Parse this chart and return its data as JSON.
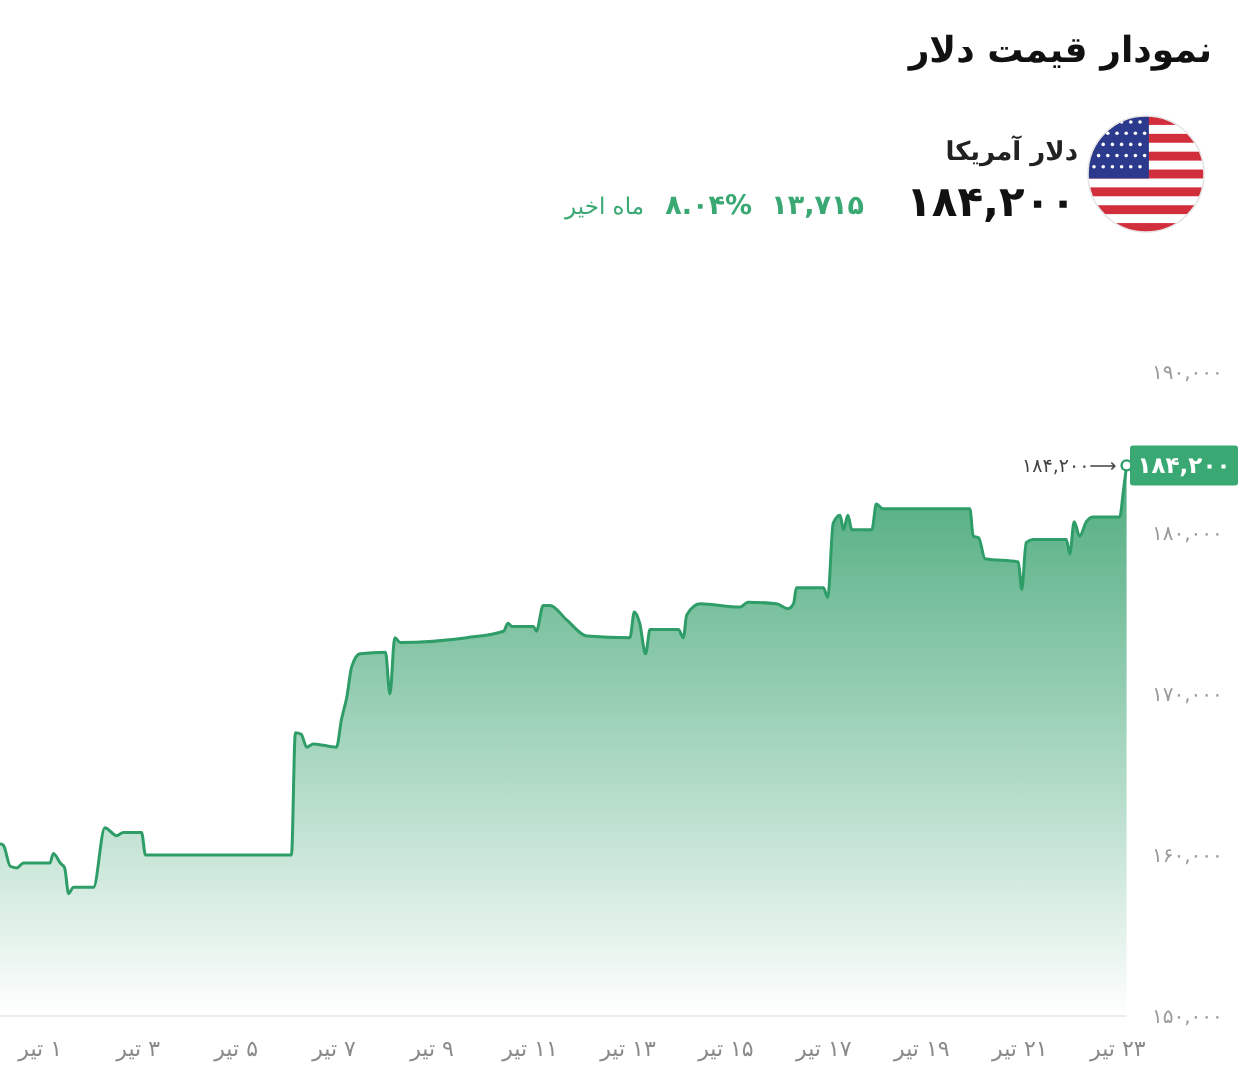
{
  "chart_data": {
    "type": "area",
    "title": "نمودار قیمت دلار",
    "subtitle": "دلار آمریکا",
    "annotations": [
      "۱۸۴,۲۰۰",
      "۱۳,۷۱۵",
      "۸.۰۴%",
      "ماه اخیر",
      {
        "text": "۱۸۴,۲۰۰⟶",
        "x": 23.18,
        "y": 184200
      },
      {
        "text": "۱۸۴,۲۰۰",
        "x": 23.18,
        "y": 184200
      }
    ],
    "x": [
      0.18,
      0.25,
      0.39,
      0.52,
      0.66,
      1.2,
      1.27,
      1.41,
      1.5,
      1.58,
      1.68,
      2.09,
      2.32,
      2.56,
      2.7,
      3.07,
      3.15,
      6.13,
      6.21,
      6.33,
      6.44,
      6.58,
      7.05,
      7.15,
      7.26,
      7.36,
      7.53,
      8.05,
      8.14,
      8.24,
      8.35,
      9.71,
      10.46,
      10.55,
      10.63,
      11.07,
      11.13,
      11.27,
      11.41,
      11.75,
      12.16,
      13.04,
      13.13,
      13.24,
      13.36,
      13.45,
      14.03,
      14.13,
      14.2,
      14.47,
      15.29,
      15.45,
      16.03,
      16.27,
      16.38,
      16.44,
      16.99,
      17.08,
      17.19,
      17.33,
      17.4,
      17.49,
      17.57,
      17.98,
      18.07,
      18.21,
      19.98,
      20.05,
      20.16,
      20.29,
      20.97,
      21.04,
      21.13,
      21.27,
      21.95,
      22.02,
      22.11,
      22.22,
      22.36,
      22.5,
      23.04,
      23.11,
      23.18
    ],
    "series": [
      {
        "color": "#2e9d68",
        "values": [
          160700,
          160600,
          159300,
          159200,
          159500,
          159500,
          160100,
          159500,
          159200,
          157600,
          158000,
          158000,
          161700,
          161200,
          161400,
          161400,
          160000,
          160000,
          167600,
          167500,
          166700,
          166900,
          166700,
          168400,
          169800,
          171700,
          172500,
          172600,
          170000,
          173500,
          173200,
          173500,
          173900,
          174400,
          174200,
          174200,
          173900,
          175500,
          175500,
          174600,
          173600,
          173500,
          175100,
          174400,
          172500,
          174000,
          174000,
          173500,
          174900,
          175600,
          175400,
          175700,
          175600,
          175300,
          175600,
          176600,
          176600,
          176000,
          180600,
          181100,
          180200,
          181100,
          180200,
          180200,
          181800,
          181500,
          181500,
          179800,
          179700,
          178400,
          178200,
          176500,
          179400,
          179600,
          179600,
          178700,
          180700,
          179800,
          180700,
          181000,
          181000,
          182500,
          184200
        ]
      }
    ],
    "xlim": [
      0.18,
      23.18
    ],
    "xticks": [
      {
        "value": 1,
        "label": "۱ تیر"
      },
      {
        "value": 3,
        "label": "۳ تیر"
      },
      {
        "value": 5,
        "label": "۵ تیر"
      },
      {
        "value": 7,
        "label": "۷ تیر"
      },
      {
        "value": 9,
        "label": "۹ تیر"
      },
      {
        "value": 11,
        "label": "۱۱ تیر"
      },
      {
        "value": 13,
        "label": "۱۳ تیر"
      },
      {
        "value": 15,
        "label": "۱۵ تیر"
      },
      {
        "value": 17,
        "label": "۱۷ تیر"
      },
      {
        "value": 19,
        "label": "۱۹ تیر"
      },
      {
        "value": 21,
        "label": "۲۱ تیر"
      },
      {
        "value": 23,
        "label": "۲۳ تیر"
      }
    ],
    "ylim": [
      150000,
      190000
    ],
    "yticks": [
      {
        "value": 150000,
        "label": "۱۵۰,۰۰۰"
      },
      {
        "value": 160000,
        "label": "۱۶۰,۰۰۰"
      },
      {
        "value": 170000,
        "label": "۱۷۰,۰۰۰"
      },
      {
        "value": 180000,
        "label": "۱۸۰,۰۰۰"
      },
      {
        "value": 190000,
        "label": "۱۹۰,۰۰۰"
      }
    ]
  }
}
